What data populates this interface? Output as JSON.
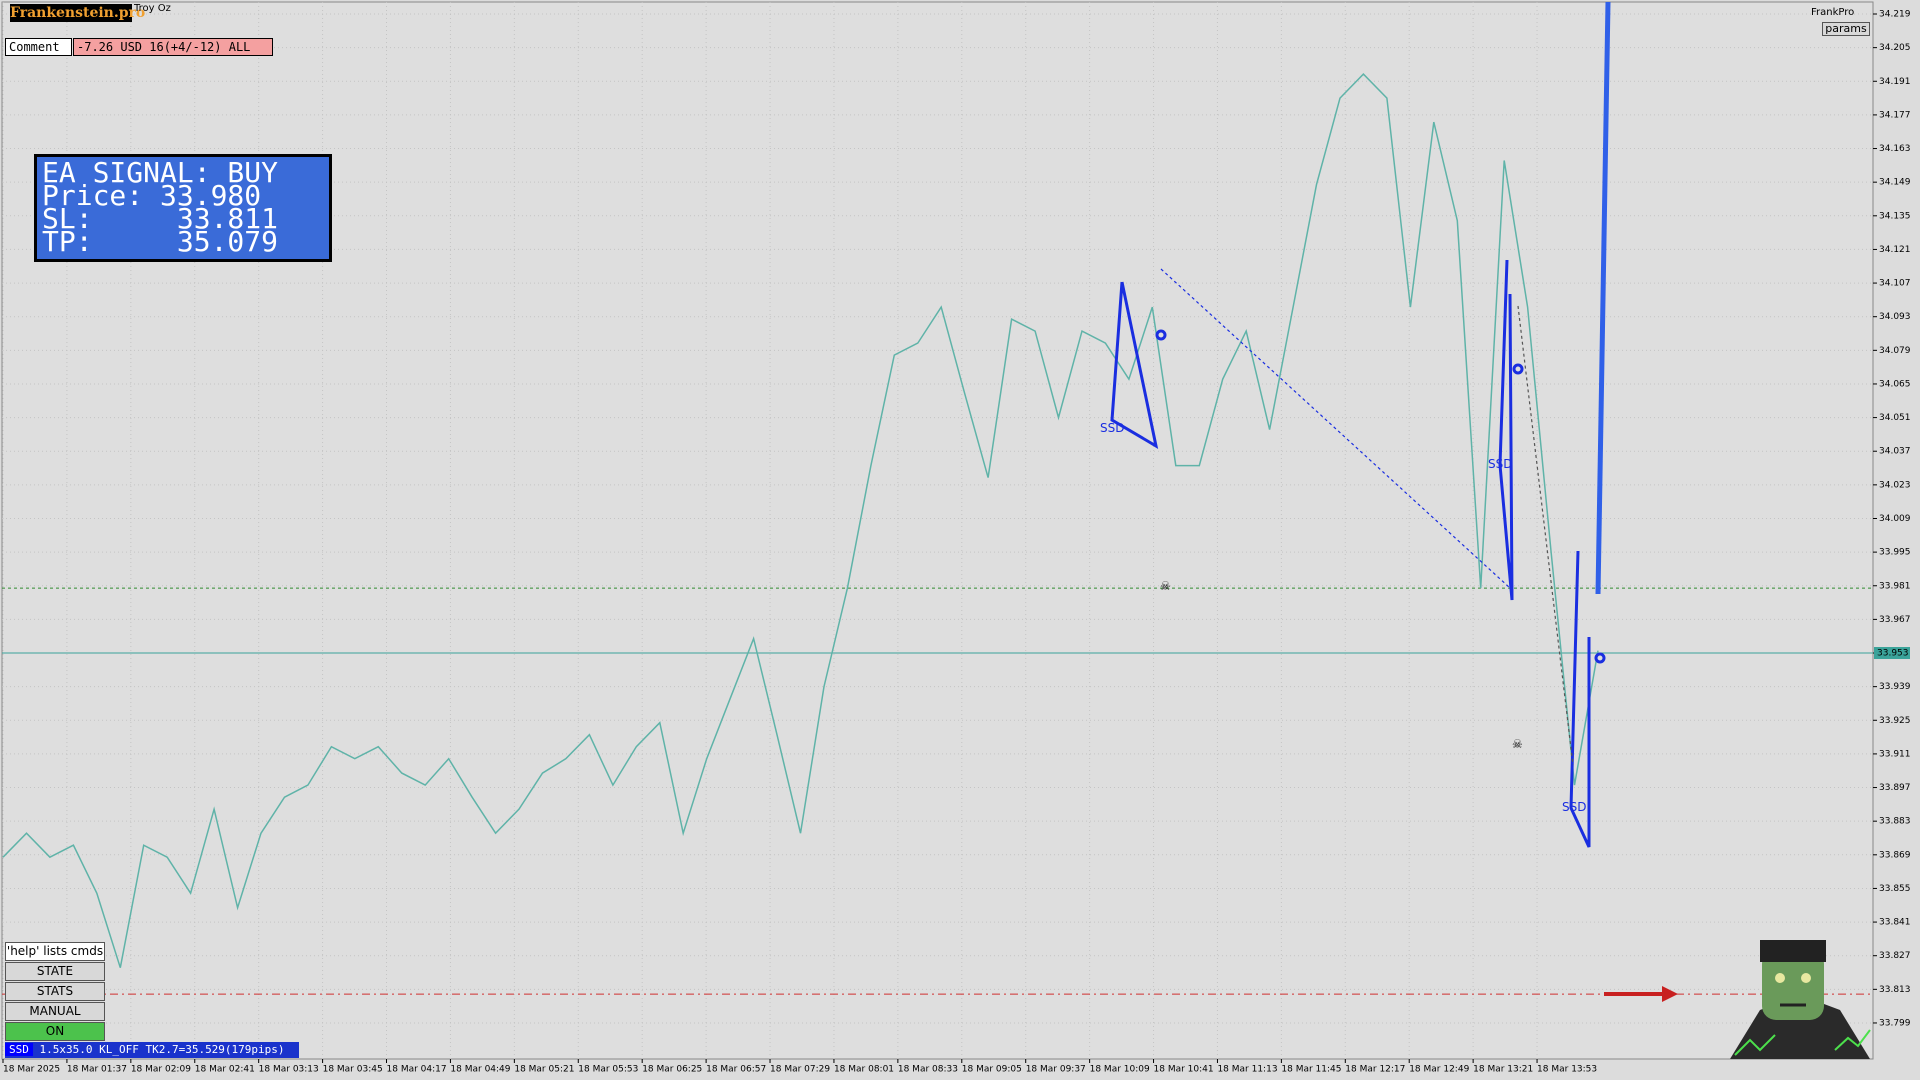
{
  "header": {
    "logo": "Frankenstein.pro",
    "symbol": "Troy Oz",
    "brand": "FrankPro",
    "params_button": "params"
  },
  "comment": {
    "label": "Comment",
    "text": "-7.26 USD 16(+4/-12) ALL"
  },
  "signal_panel": {
    "title": "EA SIGNAL: BUY",
    "price": "Price: 33.980",
    "sl": "SL:     33.811",
    "tp": "TP:     35.079"
  },
  "buttons": [
    "'help' lists cmds",
    "STATE",
    "STATS",
    "MANUAL",
    "ON"
  ],
  "status_bar": {
    "tag": "SSD",
    "text": "1.5x35.0 KL_OFF TK2.7=35.529(179pips)"
  },
  "chart_data": {
    "type": "line",
    "color": "#5fb3a8",
    "values": [
      33.868,
      33.878,
      33.868,
      33.873,
      33.853,
      33.822,
      33.873,
      33.868,
      33.853,
      33.888,
      33.847,
      33.878,
      33.893,
      33.898,
      33.914,
      33.909,
      33.914,
      33.903,
      33.898,
      33.909,
      33.893,
      33.878,
      33.888,
      33.903,
      33.909,
      33.919,
      33.898,
      33.914,
      33.924,
      33.878,
      33.909,
      33.934,
      33.959,
      33.919,
      33.878,
      33.939,
      33.98,
      34.031,
      34.077,
      34.082,
      34.097,
      34.061,
      34.026,
      34.092,
      34.087,
      34.051,
      34.087,
      34.082,
      34.067,
      34.097,
      34.031,
      34.031,
      34.067,
      34.087,
      34.046,
      34.097,
      34.148,
      34.184,
      34.194,
      34.184,
      34.097,
      34.174,
      34.133,
      33.98,
      34.158,
      34.097,
      33.995,
      33.898,
      33.954
    ],
    "time_labels": [
      "18 Mar 2025",
      "18 Mar 01:37",
      "18 Mar 02:09",
      "18 Mar 02:41",
      "18 Mar 03:13",
      "18 Mar 03:45",
      "18 Mar 04:17",
      "18 Mar 04:49",
      "18 Mar 05:21",
      "18 Mar 05:53",
      "18 Mar 06:25",
      "18 Mar 06:57",
      "18 Mar 07:29",
      "18 Mar 08:01",
      "18 Mar 08:33",
      "18 Mar 09:05",
      "18 Mar 09:37",
      "18 Mar 10:09",
      "18 Mar 10:41",
      "18 Mar 11:13",
      "18 Mar 11:45",
      "18 Mar 12:17",
      "18 Mar 12:49",
      "18 Mar 13:21",
      "18 Mar 13:53"
    ],
    "ylim": [
      33.784,
      34.224
    ],
    "yticks": [
      34.219,
      34.205,
      34.191,
      34.177,
      34.163,
      34.149,
      34.135,
      34.121,
      34.107,
      34.093,
      34.079,
      34.065,
      34.051,
      34.037,
      34.023,
      34.009,
      33.995,
      33.981,
      33.967,
      33.953,
      33.939,
      33.925,
      33.911,
      33.897,
      33.883,
      33.869,
      33.855,
      33.841,
      33.827,
      33.813,
      33.799
    ],
    "grid": true,
    "levels": [
      {
        "value": 33.98,
        "color": "#2e8b2e"
      },
      {
        "value": 33.953,
        "color": "#3aa39a"
      },
      {
        "value": 33.811,
        "color": "#d03030"
      }
    ],
    "pattern_labels": [
      "SSD",
      "SSD",
      "SSD"
    ]
  }
}
